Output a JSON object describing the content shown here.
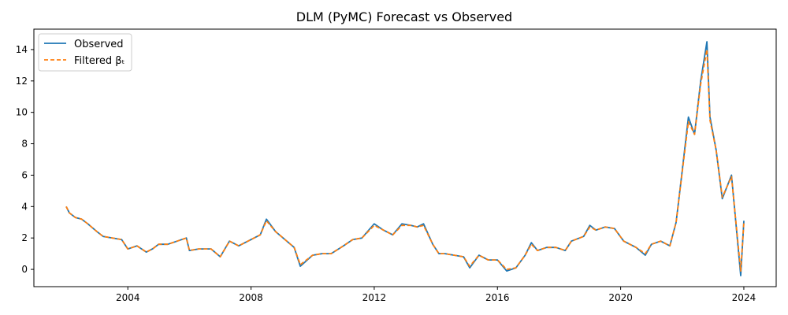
{
  "chart_data": {
    "type": "line",
    "title": "DLM (PyMC) Forecast vs Observed",
    "xlabel": "",
    "ylabel": "",
    "xlim": [
      2000.95,
      2025.05
    ],
    "ylim": [
      -1.1,
      15.3
    ],
    "x_ticks": [
      2004,
      2008,
      2012,
      2016,
      2020,
      2024
    ],
    "y_ticks": [
      0,
      2,
      4,
      6,
      8,
      10,
      12,
      14
    ],
    "grid": false,
    "legend_position": "top-left",
    "x": [
      2002.0,
      2002.1,
      2002.3,
      2002.5,
      2002.7,
      2003.0,
      2003.2,
      2003.5,
      2003.8,
      2004.0,
      2004.3,
      2004.6,
      2004.8,
      2005.0,
      2005.3,
      2005.6,
      2005.9,
      2006.0,
      2006.3,
      2006.7,
      2007.0,
      2007.3,
      2007.6,
      2008.0,
      2008.3,
      2008.5,
      2008.8,
      2009.1,
      2009.4,
      2009.6,
      2010.0,
      2010.3,
      2010.6,
      2011.0,
      2011.3,
      2011.6,
      2012.0,
      2012.3,
      2012.6,
      2012.9,
      2013.2,
      2013.4,
      2013.6,
      2013.9,
      2014.1,
      2014.3,
      2014.6,
      2014.9,
      2015.1,
      2015.4,
      2015.7,
      2016.0,
      2016.3,
      2016.6,
      2016.9,
      2017.1,
      2017.3,
      2017.6,
      2017.9,
      2018.2,
      2018.4,
      2018.8,
      2019.0,
      2019.2,
      2019.5,
      2019.8,
      2020.1,
      2020.5,
      2020.8,
      2021.0,
      2021.3,
      2021.6,
      2021.8,
      2022.0,
      2022.2,
      2022.4,
      2022.6,
      2022.8,
      2022.9,
      2023.1,
      2023.3,
      2023.6,
      2023.9,
      2024.0
    ],
    "series": [
      {
        "name": "Observed",
        "color": "#1f77b4",
        "values": [
          4.0,
          3.6,
          3.3,
          3.2,
          2.9,
          2.4,
          2.1,
          2.0,
          1.9,
          1.3,
          1.5,
          1.1,
          1.3,
          1.6,
          1.6,
          1.8,
          2.0,
          1.2,
          1.3,
          1.3,
          0.8,
          1.8,
          1.5,
          1.9,
          2.2,
          3.2,
          2.4,
          1.9,
          1.4,
          0.2,
          0.9,
          1.0,
          1.0,
          1.5,
          1.9,
          2.0,
          2.9,
          2.5,
          2.2,
          2.9,
          2.8,
          2.7,
          2.9,
          1.6,
          1.0,
          1.0,
          0.9,
          0.8,
          0.1,
          0.9,
          0.6,
          0.6,
          -0.1,
          0.1,
          0.9,
          1.7,
          1.2,
          1.4,
          1.4,
          1.2,
          1.8,
          2.1,
          2.8,
          2.5,
          2.7,
          2.6,
          1.8,
          1.4,
          0.9,
          1.6,
          1.8,
          1.5,
          3.0,
          6.3,
          9.7,
          8.6,
          12.0,
          14.5,
          9.7,
          7.6,
          4.5,
          6.0,
          -0.4,
          3.1
        ]
      },
      {
        "name": "Filtered βₜ",
        "color": "#ff7f0e",
        "values": [
          4.0,
          3.6,
          3.3,
          3.2,
          2.9,
          2.4,
          2.1,
          2.0,
          1.9,
          1.3,
          1.5,
          1.1,
          1.3,
          1.6,
          1.6,
          1.8,
          2.0,
          1.2,
          1.3,
          1.3,
          0.8,
          1.8,
          1.5,
          1.9,
          2.2,
          3.1,
          2.4,
          1.9,
          1.4,
          0.3,
          0.9,
          1.0,
          1.0,
          1.5,
          1.9,
          2.0,
          2.8,
          2.5,
          2.2,
          2.8,
          2.8,
          2.7,
          2.8,
          1.6,
          1.0,
          1.0,
          0.9,
          0.8,
          0.2,
          0.9,
          0.6,
          0.6,
          0.0,
          0.1,
          0.9,
          1.6,
          1.2,
          1.4,
          1.4,
          1.2,
          1.8,
          2.1,
          2.7,
          2.5,
          2.7,
          2.6,
          1.8,
          1.4,
          1.0,
          1.6,
          1.8,
          1.5,
          3.0,
          6.2,
          9.4,
          8.6,
          11.8,
          14.0,
          9.5,
          7.6,
          4.6,
          5.9,
          -0.1,
          3.0
        ]
      }
    ]
  }
}
